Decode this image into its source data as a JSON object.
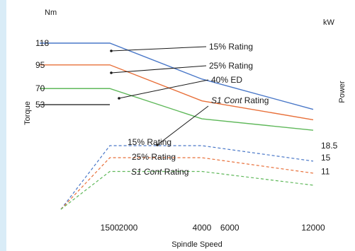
{
  "chart_data": {
    "type": "line",
    "xlabel": "Spindle Speed",
    "x_ticks": [
      "1500",
      "2000",
      "4000",
      "6000",
      "12000"
    ],
    "y_left": {
      "label": "Torque",
      "unit": "Nm",
      "ticks": [
        "118",
        "95",
        "70",
        "53"
      ]
    },
    "y_right": {
      "label": "Power",
      "unit": "kW",
      "ticks": [
        "18.5",
        "15",
        "11"
      ]
    },
    "torque_series": [
      {
        "color": "#4a78c8",
        "points": [
          [
            0,
            118
          ],
          [
            1500,
            118
          ],
          [
            4000,
            80
          ],
          [
            12000,
            48
          ]
        ]
      },
      {
        "color": "#e8703a",
        "points": [
          [
            0,
            95
          ],
          [
            1500,
            95
          ],
          [
            4000,
            57
          ],
          [
            12000,
            37
          ]
        ]
      },
      {
        "color": "#5fb85a",
        "points": [
          [
            0,
            70
          ],
          [
            1500,
            70
          ],
          [
            4000,
            38
          ],
          [
            12000,
            26
          ]
        ]
      },
      {
        "color": "#3a3a3a",
        "points": [
          [
            0,
            53
          ],
          [
            1500,
            53
          ]
        ]
      }
    ],
    "power_series": [
      {
        "color": "#4a78c8",
        "points": [
          [
            0,
            0
          ],
          [
            1500,
            18.5
          ],
          [
            4000,
            18.5
          ],
          [
            12000,
            14
          ]
        ]
      },
      {
        "color": "#e8703a",
        "points": [
          [
            0,
            0
          ],
          [
            1500,
            15
          ],
          [
            4000,
            15
          ],
          [
            12000,
            10.5
          ]
        ]
      },
      {
        "color": "#5fb85a",
        "points": [
          [
            0,
            0
          ],
          [
            1500,
            11
          ],
          [
            4000,
            11
          ],
          [
            12000,
            7
          ]
        ]
      }
    ],
    "annotations": [
      {
        "parts": [
          {
            "t": "15% Rating"
          }
        ]
      },
      {
        "parts": [
          {
            "t": "25% Rating"
          }
        ]
      },
      {
        "parts": [
          {
            "t": "40% ED"
          }
        ]
      },
      {
        "parts": [
          {
            "t": "S1 Cont",
            "italic": true
          },
          {
            "t": " Rating"
          }
        ]
      },
      {
        "parts": [
          {
            "t": "15% Rating"
          }
        ]
      },
      {
        "parts": [
          {
            "t": "25% Rating"
          }
        ]
      },
      {
        "parts": [
          {
            "t": "S1 Cont",
            "italic": true
          },
          {
            "t": " Rating"
          }
        ]
      }
    ]
  }
}
